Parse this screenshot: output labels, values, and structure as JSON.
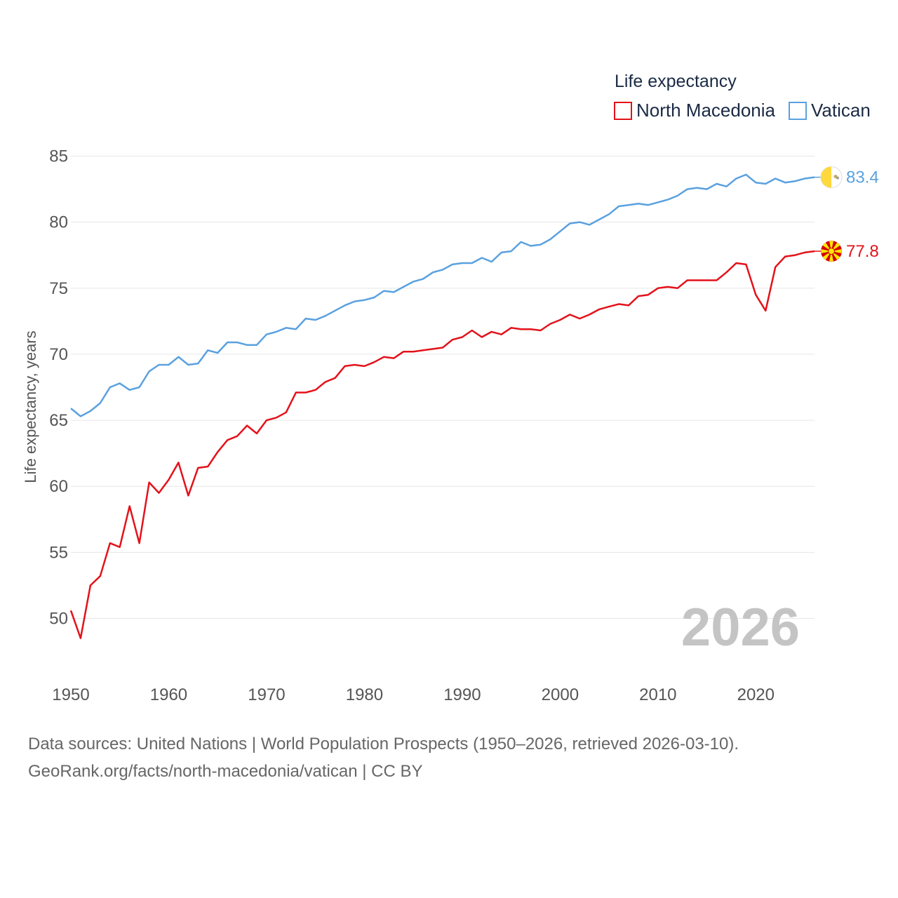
{
  "chart_data": {
    "type": "line",
    "title": "",
    "ylabel": "Life expectancy, years",
    "xlabel": "",
    "legend_title": "Life expectancy",
    "legend_position": "top-right",
    "grid": true,
    "xlim": [
      1950,
      2026
    ],
    "ylim": [
      47.5,
      86
    ],
    "y_ticks": [
      50,
      55,
      60,
      65,
      70,
      75,
      80,
      85
    ],
    "x_ticks": [
      1950,
      1960,
      1970,
      1980,
      1990,
      2000,
      2010,
      2020
    ],
    "year_label": "2026",
    "x": [
      1950,
      1951,
      1952,
      1953,
      1954,
      1955,
      1956,
      1957,
      1958,
      1959,
      1960,
      1961,
      1962,
      1963,
      1964,
      1965,
      1966,
      1967,
      1968,
      1969,
      1970,
      1971,
      1972,
      1973,
      1974,
      1975,
      1976,
      1977,
      1978,
      1979,
      1980,
      1981,
      1982,
      1983,
      1984,
      1985,
      1986,
      1987,
      1988,
      1989,
      1990,
      1991,
      1992,
      1993,
      1994,
      1995,
      1996,
      1997,
      1998,
      1999,
      2000,
      2001,
      2002,
      2003,
      2004,
      2005,
      2006,
      2007,
      2008,
      2009,
      2010,
      2011,
      2012,
      2013,
      2014,
      2015,
      2016,
      2017,
      2018,
      2019,
      2020,
      2021,
      2022,
      2023,
      2024,
      2025,
      2026
    ],
    "series": [
      {
        "name": "North Macedonia",
        "color": "#e3121a",
        "end_label": "77.8",
        "flag": "north-macedonia-flag-icon",
        "values": [
          50.6,
          48.5,
          52.5,
          53.2,
          55.7,
          55.4,
          58.5,
          55.7,
          60.3,
          59.5,
          60.5,
          61.8,
          59.3,
          61.4,
          61.5,
          62.6,
          63.5,
          63.8,
          64.6,
          64.0,
          65.0,
          65.2,
          65.6,
          67.1,
          67.1,
          67.3,
          67.9,
          68.2,
          69.1,
          69.2,
          69.1,
          69.4,
          69.8,
          69.7,
          70.2,
          70.2,
          70.3,
          70.4,
          70.5,
          71.1,
          71.3,
          71.8,
          71.3,
          71.7,
          71.5,
          72.0,
          71.9,
          71.9,
          71.8,
          72.3,
          72.6,
          73.0,
          72.7,
          73.0,
          73.4,
          73.6,
          73.8,
          73.7,
          74.4,
          74.5,
          75.0,
          75.1,
          75.0,
          75.6,
          75.6,
          75.6,
          75.6,
          76.2,
          76.9,
          76.8,
          74.5,
          73.3,
          76.6,
          77.4,
          77.5,
          77.7,
          77.8
        ]
      },
      {
        "name": "Vatican",
        "color": "#5aa1df",
        "end_label": "83.4",
        "flag": "vatican-flag-icon",
        "values": [
          65.9,
          65.3,
          65.7,
          66.3,
          67.5,
          67.8,
          67.3,
          67.5,
          68.7,
          69.2,
          69.2,
          69.8,
          69.2,
          69.3,
          70.3,
          70.1,
          70.9,
          70.9,
          70.7,
          70.7,
          71.5,
          71.7,
          72.0,
          71.9,
          72.7,
          72.6,
          72.9,
          73.3,
          73.7,
          74.0,
          74.1,
          74.3,
          74.8,
          74.7,
          75.1,
          75.5,
          75.7,
          76.2,
          76.4,
          76.8,
          76.9,
          76.9,
          77.3,
          77.0,
          77.7,
          77.8,
          78.5,
          78.2,
          78.3,
          78.7,
          79.3,
          79.9,
          80.0,
          79.8,
          80.2,
          80.6,
          81.2,
          81.3,
          81.4,
          81.3,
          81.5,
          81.7,
          82.0,
          82.5,
          82.6,
          82.5,
          82.9,
          82.7,
          83.3,
          83.6,
          83.0,
          82.9,
          83.3,
          83.0,
          83.1,
          83.3,
          83.4
        ]
      }
    ]
  },
  "footer": {
    "line1": "Data sources: United Nations | World Population Prospects (1950–2026, retrieved 2026-03-10).",
    "line2": "GeoRank.org/facts/north-macedonia/vatican | CC BY"
  }
}
